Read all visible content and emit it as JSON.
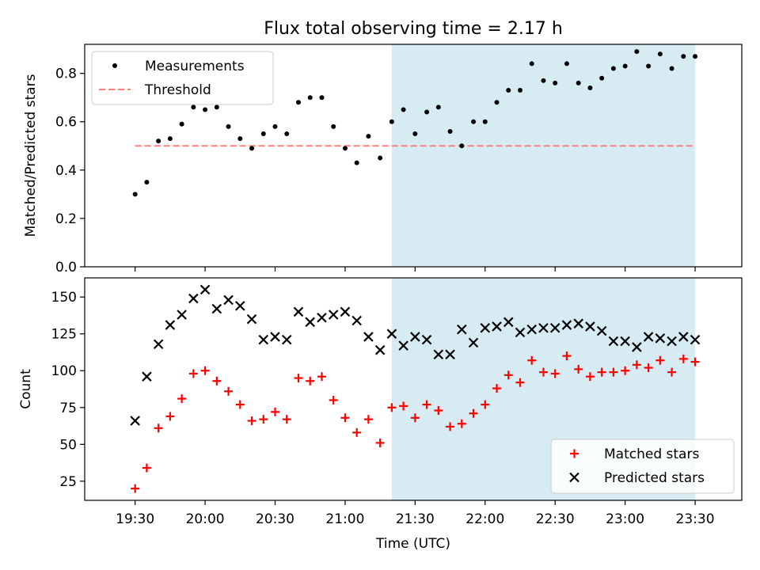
{
  "title": "Flux total observing time = 2.17 h",
  "colors": {
    "measurement": "#000000",
    "threshold": "#ff7f7f",
    "matched": "#ff0000",
    "predicted": "#000000",
    "shade": "#add8e6"
  },
  "chart_data": [
    {
      "type": "scatter",
      "ylabel": "Matched/Predicted stars",
      "ylim": [
        0.0,
        0.92
      ],
      "yticks": [
        0.0,
        0.2,
        0.4,
        0.6,
        0.8
      ],
      "ytick_labels": [
        "0.0",
        "0.2",
        "0.4",
        "0.6",
        "0.8"
      ],
      "legend_position": "top-left",
      "shaded_span": [
        "21:20",
        "23:30"
      ],
      "series": [
        {
          "name": "Measurements",
          "marker": "dot",
          "x": [
            "19:30",
            "19:35",
            "19:40",
            "19:45",
            "19:50",
            "19:55",
            "20:00",
            "20:05",
            "20:10",
            "20:15",
            "20:20",
            "20:25",
            "20:30",
            "20:35",
            "20:40",
            "20:45",
            "20:50",
            "20:55",
            "21:00",
            "21:05",
            "21:10",
            "21:15",
            "21:20",
            "21:25",
            "21:30",
            "21:35",
            "21:40",
            "21:45",
            "21:50",
            "21:55",
            "22:00",
            "22:05",
            "22:10",
            "22:15",
            "22:20",
            "22:25",
            "22:30",
            "22:35",
            "22:40",
            "22:45",
            "22:50",
            "22:55",
            "23:00",
            "23:05",
            "23:10",
            "23:15",
            "23:20",
            "23:25",
            "23:30"
          ],
          "y": [
            0.3,
            0.35,
            0.52,
            0.53,
            0.59,
            0.66,
            0.65,
            0.66,
            0.58,
            0.53,
            0.49,
            0.55,
            0.58,
            0.55,
            0.68,
            0.7,
            0.7,
            0.58,
            0.49,
            0.43,
            0.54,
            0.45,
            0.6,
            0.65,
            0.55,
            0.64,
            0.66,
            0.56,
            0.5,
            0.6,
            0.6,
            0.68,
            0.73,
            0.73,
            0.84,
            0.77,
            0.76,
            0.84,
            0.76,
            0.74,
            0.78,
            0.82,
            0.83,
            0.89,
            0.83,
            0.88,
            0.82,
            0.87,
            0.87
          ]
        },
        {
          "name": "Threshold",
          "line": "dashed",
          "x": [
            "19:30",
            "23:30"
          ],
          "y": [
            0.5,
            0.5
          ]
        }
      ]
    },
    {
      "type": "scatter",
      "ylabel": "Count",
      "xlabel": "Time (UTC)",
      "ylim": [
        12,
        163
      ],
      "yticks": [
        25,
        50,
        75,
        100,
        125,
        150
      ],
      "ytick_labels": [
        "25",
        "50",
        "75",
        "100",
        "125",
        "150"
      ],
      "xticks": [
        "19:30",
        "20:00",
        "20:30",
        "21:00",
        "21:30",
        "22:00",
        "22:30",
        "23:00",
        "23:30"
      ],
      "legend_position": "bottom-right",
      "shaded_span": [
        "21:20",
        "23:30"
      ],
      "series": [
        {
          "name": "Matched stars",
          "marker": "plus",
          "x": [
            "19:30",
            "19:35",
            "19:40",
            "19:45",
            "19:50",
            "19:55",
            "20:00",
            "20:05",
            "20:10",
            "20:15",
            "20:20",
            "20:25",
            "20:30",
            "20:35",
            "20:40",
            "20:45",
            "20:50",
            "20:55",
            "21:00",
            "21:05",
            "21:10",
            "21:15",
            "21:20",
            "21:25",
            "21:30",
            "21:35",
            "21:40",
            "21:45",
            "21:50",
            "21:55",
            "22:00",
            "22:05",
            "22:10",
            "22:15",
            "22:20",
            "22:25",
            "22:30",
            "22:35",
            "22:40",
            "22:45",
            "22:50",
            "22:55",
            "23:00",
            "23:05",
            "23:10",
            "23:15",
            "23:20",
            "23:25",
            "23:30"
          ],
          "y": [
            20,
            34,
            61,
            69,
            81,
            98,
            100,
            93,
            86,
            77,
            66,
            67,
            72,
            67,
            95,
            93,
            96,
            80,
            68,
            58,
            67,
            51,
            75,
            76,
            68,
            77,
            73,
            62,
            64,
            71,
            77,
            88,
            97,
            92,
            107,
            99,
            98,
            110,
            101,
            96,
            99,
            99,
            100,
            104,
            102,
            107,
            99,
            108,
            106
          ]
        },
        {
          "name": "Predicted stars",
          "marker": "x",
          "x": [
            "19:30",
            "19:35",
            "19:40",
            "19:45",
            "19:50",
            "19:55",
            "20:00",
            "20:05",
            "20:10",
            "20:15",
            "20:20",
            "20:25",
            "20:30",
            "20:35",
            "20:40",
            "20:45",
            "20:50",
            "20:55",
            "21:00",
            "21:05",
            "21:10",
            "21:15",
            "21:20",
            "21:25",
            "21:30",
            "21:35",
            "21:40",
            "21:45",
            "21:50",
            "21:55",
            "22:00",
            "22:05",
            "22:10",
            "22:15",
            "22:20",
            "22:25",
            "22:30",
            "22:35",
            "22:40",
            "22:45",
            "22:50",
            "22:55",
            "23:00",
            "23:05",
            "23:10",
            "23:15",
            "23:20",
            "23:25",
            "23:30"
          ],
          "y": [
            66,
            96,
            118,
            131,
            138,
            149,
            155,
            142,
            148,
            144,
            135,
            121,
            123,
            121,
            140,
            133,
            136,
            138,
            140,
            134,
            123,
            114,
            125,
            117,
            123,
            121,
            111,
            111,
            128,
            119,
            129,
            130,
            133,
            126,
            128,
            129,
            129,
            131,
            132,
            130,
            127,
            120,
            120,
            116,
            123,
            122,
            120,
            123,
            121
          ]
        }
      ]
    }
  ]
}
